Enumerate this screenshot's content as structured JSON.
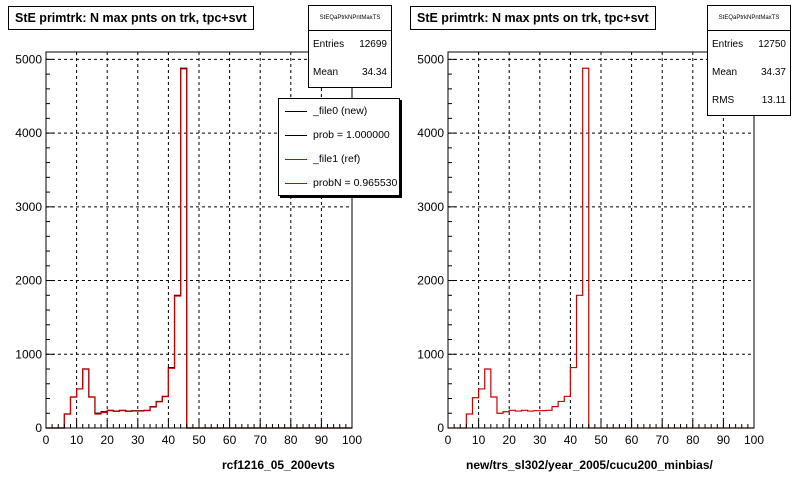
{
  "colors": {
    "new": "#000000",
    "ref": "#cc0000",
    "grid": "#000000"
  },
  "panels": [
    {
      "title": "StE primtrk: N max pnts on trk, tpc+svt",
      "stats": {
        "name": "StEQaPtrkNPntMaxTS",
        "rows": [
          {
            "label": "Entries",
            "value": "12699"
          },
          {
            "label": "Mean",
            "value": "34.34"
          }
        ]
      },
      "legend": [
        {
          "label": "_file0 (new)",
          "color": "#000000"
        },
        {
          "label": "prob = 1.000000",
          "color": "#000000"
        },
        {
          "label": "_file1 (ref)",
          "color": "#cc0000"
        },
        {
          "label": "probN = 0.965530",
          "color": "#cc0000"
        }
      ],
      "xtitle": "rcf1216_05_200evts"
    },
    {
      "title": "StE primtrk: N max pnts on trk, tpc+svt",
      "stats": {
        "name": "StEQaPtrkNPntMaxTS",
        "rows": [
          {
            "label": "Entries",
            "value": "12750"
          },
          {
            "label": "Mean",
            "value": "34.37"
          },
          {
            "label": "RMS",
            "value": "13.11"
          }
        ]
      },
      "xtitle": "new/trs_sl302/year_2005/cucu200_minbias/"
    }
  ],
  "chart_data": [
    {
      "type": "histogram",
      "title": "StE primtrk: N max pnts on trk, tpc+svt",
      "xlabel": "rcf1216_05_200evts",
      "xlim": [
        0,
        100
      ],
      "ylim": [
        0,
        5100
      ],
      "xticks": [
        0,
        10,
        20,
        30,
        40,
        50,
        60,
        70,
        80,
        90,
        100
      ],
      "yticks": [
        0,
        1000,
        2000,
        3000,
        4000,
        5000
      ],
      "grid": true,
      "bin_width": 2,
      "series": [
        {
          "name": "_file0 (new)",
          "color": "#000000",
          "bins_x": [
            0,
            2,
            4,
            6,
            8,
            10,
            12,
            14,
            16,
            18,
            20,
            22,
            24,
            26,
            28,
            30,
            32,
            34,
            36,
            38,
            40,
            42,
            44,
            46,
            48
          ],
          "values": [
            0,
            0,
            0,
            190,
            420,
            530,
            800,
            420,
            200,
            220,
            240,
            230,
            240,
            230,
            235,
            235,
            240,
            290,
            360,
            430,
            820,
            1800,
            4880,
            0,
            0
          ]
        },
        {
          "name": "_file1 (ref)",
          "color": "#cc0000",
          "bins_x": [
            0,
            2,
            4,
            6,
            8,
            10,
            12,
            14,
            16,
            18,
            20,
            22,
            24,
            26,
            28,
            30,
            32,
            34,
            36,
            38,
            40,
            42,
            44,
            46,
            48
          ],
          "values": [
            0,
            0,
            0,
            190,
            420,
            530,
            800,
            420,
            190,
            210,
            235,
            225,
            235,
            225,
            230,
            230,
            235,
            285,
            355,
            425,
            810,
            1790,
            4870,
            0,
            0
          ]
        }
      ]
    },
    {
      "type": "histogram",
      "title": "StE primtrk: N max pnts on trk, tpc+svt",
      "xlabel": "new/trs_sl302/year_2005/cucu200_minbias/",
      "xlim": [
        0,
        100
      ],
      "ylim": [
        0,
        5100
      ],
      "xticks": [
        0,
        10,
        20,
        30,
        40,
        50,
        60,
        70,
        80,
        90,
        100
      ],
      "yticks": [
        0,
        1000,
        2000,
        3000,
        4000,
        5000
      ],
      "grid": true,
      "bin_width": 2,
      "series": [
        {
          "color": "#cc0000",
          "bins_x": [
            0,
            2,
            4,
            6,
            8,
            10,
            12,
            14,
            16,
            18,
            20,
            22,
            24,
            26,
            28,
            30,
            32,
            34,
            36,
            38,
            40,
            42,
            44,
            46,
            48
          ],
          "values": [
            0,
            0,
            0,
            190,
            410,
            530,
            800,
            420,
            200,
            220,
            240,
            230,
            240,
            230,
            235,
            235,
            240,
            290,
            360,
            430,
            820,
            1800,
            4880,
            0,
            0
          ]
        }
      ]
    }
  ]
}
